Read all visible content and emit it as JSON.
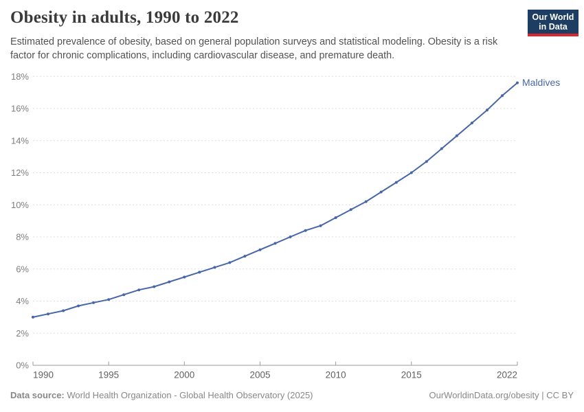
{
  "header": {
    "title": "Obesity in adults, 1990 to 2022",
    "subtitle": "Estimated prevalence of obesity, based on general population surveys and statistical modeling. Obesity is a risk factor for chronic complications, including cardiovascular disease, and premature death."
  },
  "logo": {
    "line1": "Our World",
    "line2": "in Data",
    "bg_color": "#1d3d63",
    "bar_color": "#d7282e"
  },
  "chart_data": {
    "type": "line",
    "title": "Obesity in adults, 1990 to 2022",
    "xlabel": "",
    "ylabel": "",
    "xlim": [
      1990,
      2022
    ],
    "ylim": [
      0,
      18
    ],
    "grid": "horizontal-dashed",
    "legend_position": "end-of-line",
    "x": [
      1990,
      1991,
      1992,
      1993,
      1994,
      1995,
      1996,
      1997,
      1998,
      1999,
      2000,
      2001,
      2002,
      2003,
      2004,
      2005,
      2006,
      2007,
      2008,
      2009,
      2010,
      2011,
      2012,
      2013,
      2014,
      2015,
      2016,
      2017,
      2018,
      2019,
      2020,
      2021,
      2022
    ],
    "series": [
      {
        "name": "Maldives",
        "color": "#4766a8",
        "values": [
          3.0,
          3.2,
          3.4,
          3.7,
          3.9,
          4.1,
          4.4,
          4.7,
          4.9,
          5.2,
          5.5,
          5.8,
          6.1,
          6.4,
          6.8,
          7.2,
          7.6,
          8.0,
          8.4,
          8.7,
          9.2,
          9.7,
          10.2,
          10.8,
          11.4,
          12.0,
          12.7,
          13.5,
          14.3,
          15.1,
          15.9,
          16.8,
          17.6
        ]
      }
    ],
    "yticks": [
      {
        "value": 0,
        "label": "0%"
      },
      {
        "value": 2,
        "label": "2%"
      },
      {
        "value": 4,
        "label": "4%"
      },
      {
        "value": 6,
        "label": "6%"
      },
      {
        "value": 8,
        "label": "8%"
      },
      {
        "value": 10,
        "label": "10%"
      },
      {
        "value": 12,
        "label": "12%"
      },
      {
        "value": 14,
        "label": "14%"
      },
      {
        "value": 16,
        "label": "16%"
      },
      {
        "value": 18,
        "label": "18%"
      }
    ],
    "xticks": [
      {
        "value": 1990,
        "label": "1990"
      },
      {
        "value": 1995,
        "label": "1995"
      },
      {
        "value": 2000,
        "label": "2000"
      },
      {
        "value": 2005,
        "label": "2005"
      },
      {
        "value": 2010,
        "label": "2010"
      },
      {
        "value": 2015,
        "label": "2015"
      },
      {
        "value": 2022,
        "label": "2022"
      }
    ]
  },
  "footer": {
    "source_label": "Data source:",
    "source_text": " World Health Organization - Global Health Observatory (2025)",
    "right_text": "OurWorldinData.org/obesity | CC BY"
  }
}
